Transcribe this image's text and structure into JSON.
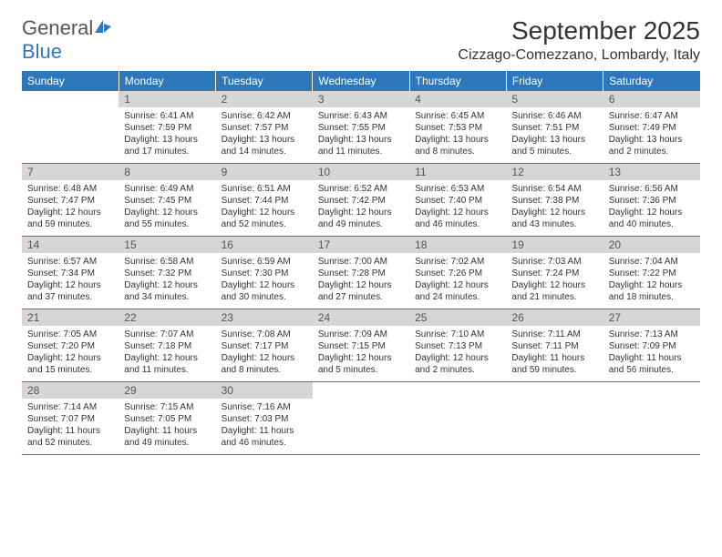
{
  "brand": {
    "name1": "General",
    "name2": "Blue"
  },
  "title": "September 2025",
  "location": "Cizzago-Comezzano, Lombardy, Italy",
  "colors": {
    "accent": "#2f77bb",
    "daynum_bg": "#d6d6d6",
    "text": "#333333",
    "white": "#ffffff"
  },
  "weekdays": [
    "Sunday",
    "Monday",
    "Tuesday",
    "Wednesday",
    "Thursday",
    "Friday",
    "Saturday"
  ],
  "calendar": {
    "first_weekday_index": 1,
    "days": [
      {
        "n": 1,
        "sunrise": "6:41 AM",
        "sunset": "7:59 PM",
        "daylight": "13 hours and 17 minutes."
      },
      {
        "n": 2,
        "sunrise": "6:42 AM",
        "sunset": "7:57 PM",
        "daylight": "13 hours and 14 minutes."
      },
      {
        "n": 3,
        "sunrise": "6:43 AM",
        "sunset": "7:55 PM",
        "daylight": "13 hours and 11 minutes."
      },
      {
        "n": 4,
        "sunrise": "6:45 AM",
        "sunset": "7:53 PM",
        "daylight": "13 hours and 8 minutes."
      },
      {
        "n": 5,
        "sunrise": "6:46 AM",
        "sunset": "7:51 PM",
        "daylight": "13 hours and 5 minutes."
      },
      {
        "n": 6,
        "sunrise": "6:47 AM",
        "sunset": "7:49 PM",
        "daylight": "13 hours and 2 minutes."
      },
      {
        "n": 7,
        "sunrise": "6:48 AM",
        "sunset": "7:47 PM",
        "daylight": "12 hours and 59 minutes."
      },
      {
        "n": 8,
        "sunrise": "6:49 AM",
        "sunset": "7:45 PM",
        "daylight": "12 hours and 55 minutes."
      },
      {
        "n": 9,
        "sunrise": "6:51 AM",
        "sunset": "7:44 PM",
        "daylight": "12 hours and 52 minutes."
      },
      {
        "n": 10,
        "sunrise": "6:52 AM",
        "sunset": "7:42 PM",
        "daylight": "12 hours and 49 minutes."
      },
      {
        "n": 11,
        "sunrise": "6:53 AM",
        "sunset": "7:40 PM",
        "daylight": "12 hours and 46 minutes."
      },
      {
        "n": 12,
        "sunrise": "6:54 AM",
        "sunset": "7:38 PM",
        "daylight": "12 hours and 43 minutes."
      },
      {
        "n": 13,
        "sunrise": "6:56 AM",
        "sunset": "7:36 PM",
        "daylight": "12 hours and 40 minutes."
      },
      {
        "n": 14,
        "sunrise": "6:57 AM",
        "sunset": "7:34 PM",
        "daylight": "12 hours and 37 minutes."
      },
      {
        "n": 15,
        "sunrise": "6:58 AM",
        "sunset": "7:32 PM",
        "daylight": "12 hours and 34 minutes."
      },
      {
        "n": 16,
        "sunrise": "6:59 AM",
        "sunset": "7:30 PM",
        "daylight": "12 hours and 30 minutes."
      },
      {
        "n": 17,
        "sunrise": "7:00 AM",
        "sunset": "7:28 PM",
        "daylight": "12 hours and 27 minutes."
      },
      {
        "n": 18,
        "sunrise": "7:02 AM",
        "sunset": "7:26 PM",
        "daylight": "12 hours and 24 minutes."
      },
      {
        "n": 19,
        "sunrise": "7:03 AM",
        "sunset": "7:24 PM",
        "daylight": "12 hours and 21 minutes."
      },
      {
        "n": 20,
        "sunrise": "7:04 AM",
        "sunset": "7:22 PM",
        "daylight": "12 hours and 18 minutes."
      },
      {
        "n": 21,
        "sunrise": "7:05 AM",
        "sunset": "7:20 PM",
        "daylight": "12 hours and 15 minutes."
      },
      {
        "n": 22,
        "sunrise": "7:07 AM",
        "sunset": "7:18 PM",
        "daylight": "12 hours and 11 minutes."
      },
      {
        "n": 23,
        "sunrise": "7:08 AM",
        "sunset": "7:17 PM",
        "daylight": "12 hours and 8 minutes."
      },
      {
        "n": 24,
        "sunrise": "7:09 AM",
        "sunset": "7:15 PM",
        "daylight": "12 hours and 5 minutes."
      },
      {
        "n": 25,
        "sunrise": "7:10 AM",
        "sunset": "7:13 PM",
        "daylight": "12 hours and 2 minutes."
      },
      {
        "n": 26,
        "sunrise": "7:11 AM",
        "sunset": "7:11 PM",
        "daylight": "11 hours and 59 minutes."
      },
      {
        "n": 27,
        "sunrise": "7:13 AM",
        "sunset": "7:09 PM",
        "daylight": "11 hours and 56 minutes."
      },
      {
        "n": 28,
        "sunrise": "7:14 AM",
        "sunset": "7:07 PM",
        "daylight": "11 hours and 52 minutes."
      },
      {
        "n": 29,
        "sunrise": "7:15 AM",
        "sunset": "7:05 PM",
        "daylight": "11 hours and 49 minutes."
      },
      {
        "n": 30,
        "sunrise": "7:16 AM",
        "sunset": "7:03 PM",
        "daylight": "11 hours and 46 minutes."
      }
    ]
  },
  "labels": {
    "sunrise": "Sunrise:",
    "sunset": "Sunset:",
    "daylight": "Daylight:"
  }
}
